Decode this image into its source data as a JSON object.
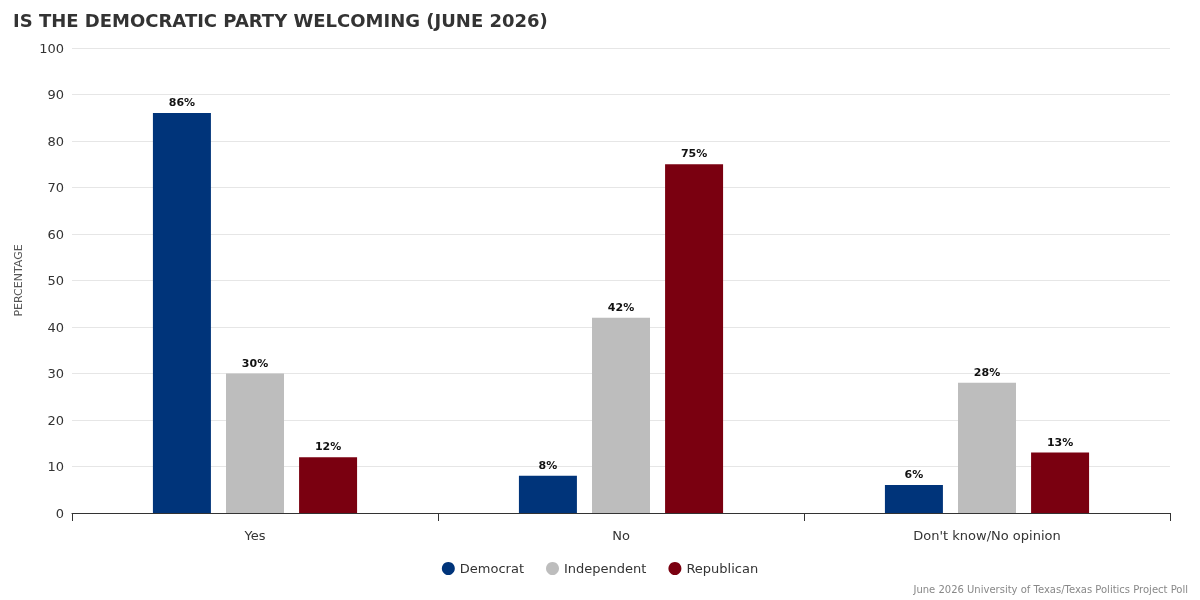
{
  "chart_data": {
    "type": "bar",
    "title": "IS THE DEMOCRATIC PARTY WELCOMING (JUNE 2026)",
    "ylabel": "PERCENTAGE",
    "categories": [
      "Yes",
      "No",
      "Don't know/No opinion"
    ],
    "series": [
      {
        "name": "Democrat",
        "color": "#00347a",
        "values": [
          86,
          8,
          6
        ],
        "value_labels": [
          "86%",
          "8%",
          "6%"
        ]
      },
      {
        "name": "Independent",
        "color": "#bdbdbd",
        "values": [
          30,
          42,
          28
        ],
        "value_labels": [
          "30%",
          "42%",
          "28%"
        ]
      },
      {
        "name": "Republican",
        "color": "#7a0010",
        "values": [
          12,
          75,
          13
        ],
        "value_labels": [
          "12%",
          "75%",
          "13%"
        ]
      }
    ],
    "ylim": [
      0,
      100
    ],
    "yticks": [
      0,
      10,
      20,
      30,
      40,
      50,
      60,
      70,
      80,
      90,
      100
    ],
    "grid": "y",
    "legend": "bottom",
    "annotations": [
      "June 2026 University of Texas/Texas Politics Project Poll"
    ]
  }
}
